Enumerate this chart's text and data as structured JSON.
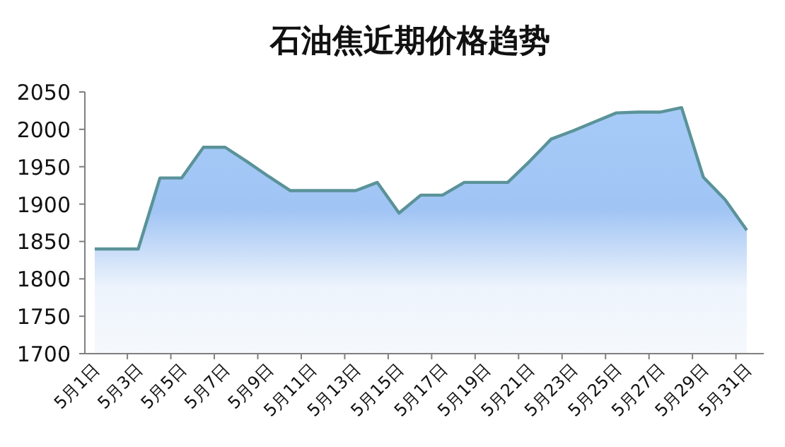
{
  "chart_data": {
    "type": "area",
    "title": "石油焦近期价格趋势",
    "categories": [
      "5月1日",
      null,
      "5月3日",
      null,
      "5月5日",
      null,
      "5月7日",
      null,
      "5月9日",
      null,
      "5月11日",
      null,
      "5月13日",
      null,
      "5月15日",
      null,
      "5月17日",
      null,
      "5月19日",
      null,
      "5月21日",
      null,
      "5月23日",
      null,
      "5月25日",
      null,
      "5月27日",
      null,
      "5月29日",
      null,
      "5月31日"
    ],
    "series": [
      {
        "color": "#5a9399",
        "values": [
          1840,
          1840,
          1840,
          1935,
          1935,
          1976,
          1976,
          1957,
          1937,
          1918,
          1918,
          1918,
          1918,
          1929,
          1888,
          1912,
          1912,
          1929,
          1929,
          1929,
          1957,
          1987,
          1998,
          2010,
          2022,
          2023,
          2023,
          2029,
          1936,
          1906,
          1865
        ]
      }
    ],
    "ylim": [
      1700,
      2050
    ],
    "yticks": [
      1700,
      1750,
      1800,
      1850,
      1900,
      1950,
      2000,
      2050
    ],
    "grid": false,
    "marker": "none",
    "line_style": "solid"
  }
}
